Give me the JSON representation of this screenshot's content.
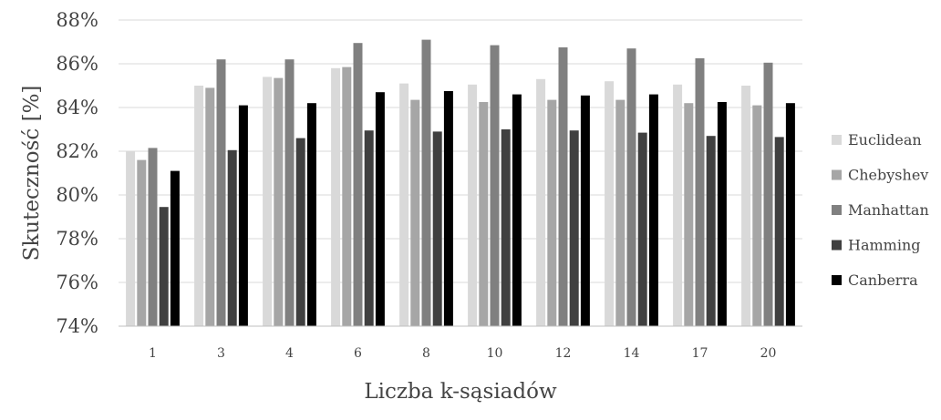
{
  "chart_data": {
    "type": "bar",
    "title": "",
    "xlabel": "Liczba k-sąsiadów",
    "ylabel": "Skuteczność [%]",
    "ylim": [
      74,
      88
    ],
    "yticks": [
      74,
      76,
      78,
      80,
      82,
      84,
      86,
      88
    ],
    "ytick_labels": [
      "74%",
      "76%",
      "78%",
      "80%",
      "82%",
      "84%",
      "86%",
      "88%"
    ],
    "grid": true,
    "legend_position": "right",
    "categories": [
      "1",
      "3",
      "4",
      "6",
      "8",
      "10",
      "12",
      "14",
      "17",
      "20"
    ],
    "series": [
      {
        "name": "Euclidean",
        "color": "#d9d9d9",
        "values": [
          82.0,
          85.0,
          85.4,
          85.8,
          85.1,
          85.05,
          85.3,
          85.2,
          85.05,
          85.0
        ]
      },
      {
        "name": "Chebyshev",
        "color": "#a6a6a6",
        "values": [
          81.6,
          84.9,
          85.35,
          85.85,
          84.35,
          84.25,
          84.35,
          84.35,
          84.2,
          84.1
        ]
      },
      {
        "name": "Manhattan",
        "color": "#808080",
        "values": [
          82.15,
          86.2,
          86.2,
          86.95,
          87.1,
          86.85,
          86.75,
          86.7,
          86.25,
          86.05
        ]
      },
      {
        "name": "Hamming",
        "color": "#404040",
        "values": [
          79.45,
          82.05,
          82.6,
          82.95,
          82.9,
          83.0,
          82.95,
          82.85,
          82.7,
          82.65
        ]
      },
      {
        "name": "Canberra",
        "color": "#000000",
        "values": [
          81.1,
          84.1,
          84.2,
          84.7,
          84.75,
          84.6,
          84.55,
          84.6,
          84.25,
          84.2
        ]
      }
    ]
  }
}
